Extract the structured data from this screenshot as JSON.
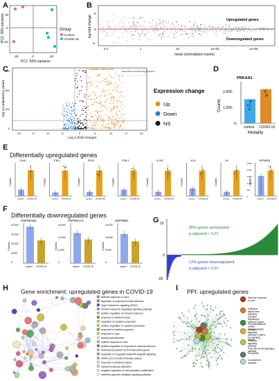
{
  "panels": {
    "A": {
      "label": "A",
      "legend_title": "Group",
      "groups": [
        "Control",
        "COVID-19"
      ],
      "xlabel": "PC1: 53% variance",
      "ylabel": "PC2: 29% variance",
      "xticks": [
        "-20",
        "0",
        "20"
      ],
      "yticks": [
        "10",
        "0",
        "-10"
      ],
      "colors": {
        "control": "#e8706a",
        "covid": "#1fbfc4"
      }
    },
    "B": {
      "label": "B",
      "xlabel": "mean (normalized counts)",
      "ylabel": "log fold change",
      "up_text": "Upregulated genes",
      "down_text": "Downregulated genes",
      "xticks": [
        "0.1",
        "1",
        "10",
        "1e+03",
        "1e+05"
      ],
      "yticks": [
        "5",
        "0",
        "-5"
      ]
    },
    "C": {
      "label": "C",
      "xlabel": "Log 2 (fold change)",
      "ylabel": "-log 10 (adjusted p-value)",
      "legend_title": "Expression change",
      "legend": [
        "Up",
        "Down",
        "NS"
      ],
      "colors": {
        "up": "#f28c28",
        "down": "#2c7fd6",
        "ns": "#111111"
      },
      "xticks": [
        "-23",
        "-17",
        "-11",
        "-5",
        "0",
        "5",
        "11",
        "17",
        "23"
      ],
      "yticks": [
        "300",
        "200",
        "100",
        "0"
      ],
      "note": "Genes above line at fold change significance"
    },
    "D": {
      "label": "D",
      "title": "PRKAA1",
      "ylabel": "Counts",
      "xlabel": "Modality",
      "categories": [
        "control",
        "COVID-19"
      ],
      "values": [
        1450,
        2050
      ],
      "yticks": [
        "2,000-",
        "1,000-",
        "0-"
      ]
    },
    "E": {
      "label": "E",
      "title": "Differentially upregulated genes",
      "genes": [
        {
          "name": "CD46",
          "control": 2,
          "covid": 8
        },
        {
          "name": "IFNL1",
          "control": 1,
          "covid": 7
        },
        {
          "name": "IFNL2",
          "control": 1,
          "covid": 6
        },
        {
          "name": "IFNL3",
          "control": 1,
          "covid": 4
        },
        {
          "name": "IL10R",
          "control": 2,
          "covid": 12
        },
        {
          "name": "IL15",
          "control": 3,
          "covid": 10
        },
        {
          "name": "IL6",
          "control": 5,
          "covid": 30
        },
        {
          "name": "RPS6KB1",
          "control": 1800,
          "covid": 2300
        }
      ],
      "ylabel": "Counts",
      "categories": [
        "control",
        "COVID-19"
      ],
      "yticks_last": [
        "2,500",
        "2,000",
        "1,500",
        "1,000",
        "500",
        "0"
      ]
    },
    "F": {
      "label": "F",
      "title": "Differentially downregulated genes",
      "genes": [
        {
          "name": "HSP90AB1",
          "control": 20000,
          "covid": 12500,
          "yticks": [
            "20,000",
            "15,000",
            "10,000",
            "5,000",
            "0"
          ]
        },
        {
          "name": "HSP90AA1",
          "control": 16500,
          "covid": 13000,
          "yticks": [
            "15,000",
            "10,000",
            "5,000",
            "0"
          ]
        },
        {
          "name": "HSP90B1",
          "control": 16000,
          "covid": 12000,
          "yticks": [
            "15,000",
            "10,000",
            "5,000",
            "0"
          ]
        }
      ],
      "ylabel": "Counts",
      "categories": [
        "control",
        "COVID-19"
      ]
    },
    "G": {
      "label": "G",
      "up_text": "88% genes upregulated",
      "up_p": "p-adjusted < 0.01",
      "down_text": "12% genes downregulated",
      "down_p": "p-adjusted < 0.01",
      "yticks": [
        "15",
        "0",
        "-20"
      ]
    },
    "H": {
      "label": "H",
      "title": "Gene enrichment: upregulated genes in COVID-19",
      "legend": [
        {
          "text": "defense response to virus",
          "color": "#d66b8a"
        },
        {
          "text": "regulation of response to biotic stimulus",
          "color": "#9a6ac4"
        },
        {
          "text": "Type II interferon signaling (IFNG)",
          "color": "#4a4aa8"
        },
        {
          "text": "immune response-regulating signaling pathway",
          "color": "#6a9ad6"
        },
        {
          "text": "positive regulation of immune response",
          "color": "#8ac0e0"
        },
        {
          "text": "response to interferon-beta",
          "color": "#c26a2a"
        },
        {
          "text": "regulation of cytokine production",
          "color": "#e8a060"
        },
        {
          "text": "positive regulation of cytokine production",
          "color": "#a0c860"
        },
        {
          "text": "response to interferon-gamma",
          "color": "#60a860"
        },
        {
          "text": "response to virus",
          "color": "#d0c040"
        },
        {
          "text": "lymphocyte activation",
          "color": "#e6d890"
        },
        {
          "text": "cellular response to virus",
          "color": "#b0b0b0"
        },
        {
          "text": "positive regulation of response to external stimulus",
          "color": "#7a7a7a"
        },
        {
          "text": "Antiviral mechanism by IFN-stimulated genes",
          "color": "#c8a8d8"
        },
        {
          "text": "regulation of I-kappaB kinase/NF-kappaB signaling",
          "color": "#e87878"
        },
        {
          "text": "SARS-CoV-2 innate immunity evasion",
          "color": "#70c0b0"
        },
        {
          "text": "response to interferon-alpha",
          "color": "#f0c8a0"
        },
        {
          "text": "myeloid leukocyte activation",
          "color": "#a8d8a8"
        },
        {
          "text": "negative regulation of cell population proliferation",
          "color": "#d8d8f0"
        },
        {
          "text": "interferon-gamma-mediated signaling pathway",
          "color": "#f8e8b8"
        }
      ]
    },
    "I": {
      "label": "I",
      "title": "PPI: upregulated genes",
      "legend": [
        {
          "text": "Defense response to virus",
          "color": "#b03a2a"
        },
        {
          "text": "Interferon alpha/ beta signaling Cytokine Signaling in Immune system",
          "color": "#d87a30"
        },
        {
          "text": "Post-translational protein phosphorylation",
          "color": "#3a8a3a"
        },
        {
          "text": "Calcium signaling pathway G-alpha (q) signaling events",
          "color": "#d8b030"
        },
        {
          "text": "PI3K-Akt signaling pathway PI3K-Akt-mTOR-signaling pathway",
          "color": "#b8c838"
        },
        {
          "text": "Exocytosis",
          "color": "#707070"
        },
        {
          "text": "Complement cascade",
          "color": "#a8d8e8"
        }
      ]
    }
  }
}
